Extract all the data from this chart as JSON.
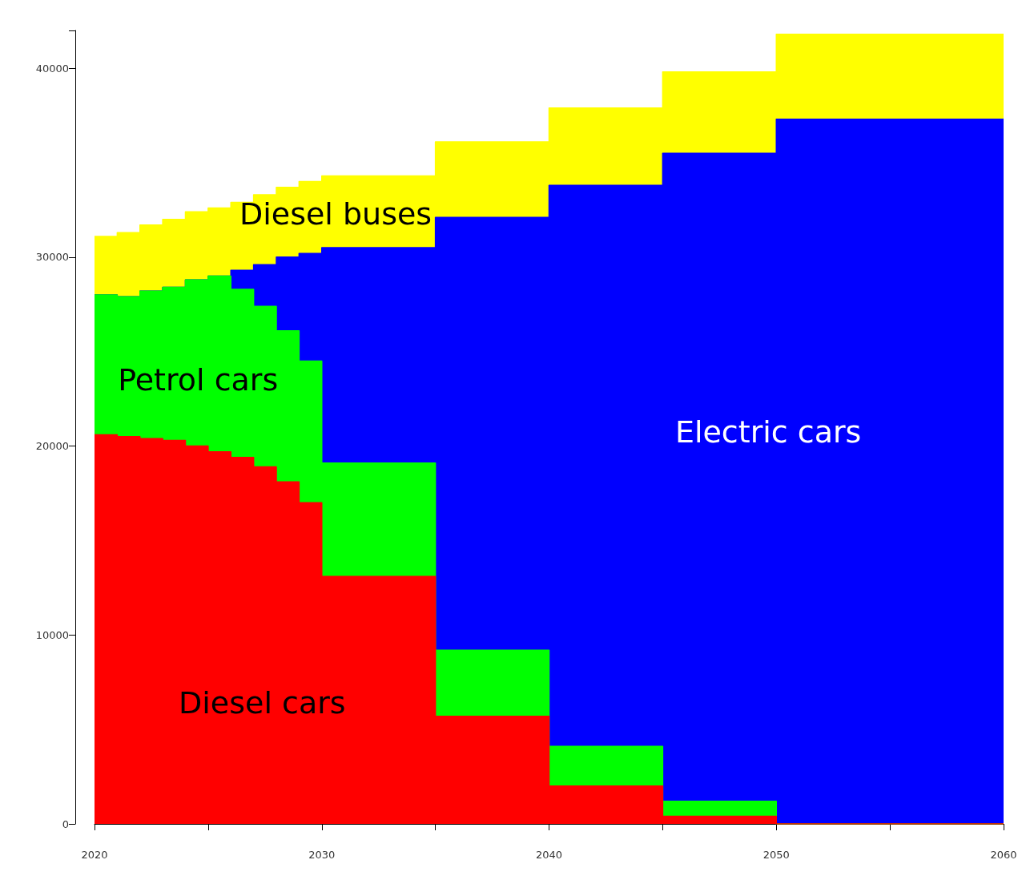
{
  "chart_data": {
    "type": "area",
    "stacked": true,
    "x": [
      2020,
      2021,
      2021,
      2022,
      2022,
      2023,
      2023,
      2024,
      2024,
      2025,
      2025,
      2026,
      2026,
      2027,
      2027,
      2028,
      2028,
      2029,
      2029,
      2030,
      2030,
      2035,
      2035,
      2040,
      2040,
      2045,
      2045,
      2050,
      2050,
      2060
    ],
    "series": [
      {
        "name": "Diesel cars",
        "color": "#ff0000",
        "values": [
          20600,
          20600,
          20500,
          20500,
          20400,
          20400,
          20300,
          20300,
          20000,
          20000,
          19700,
          19700,
          19400,
          19400,
          18900,
          18900,
          18100,
          18100,
          17000,
          17000,
          13100,
          13100,
          5700,
          5700,
          2000,
          2000,
          400,
          400,
          0,
          0
        ]
      },
      {
        "name": "Petrol cars",
        "color": "#00ff00",
        "values": [
          7400,
          7400,
          7400,
          7400,
          7800,
          7800,
          8100,
          8100,
          8800,
          8800,
          9300,
          9300,
          8900,
          8900,
          8500,
          8500,
          8000,
          8000,
          7500,
          7500,
          6000,
          6000,
          3500,
          3500,
          2100,
          2100,
          800,
          800,
          0,
          0
        ]
      },
      {
        "name": "Electric cars",
        "color": "#0000ff",
        "values": [
          0,
          0,
          0,
          0,
          0,
          0,
          0,
          0,
          0,
          0,
          0,
          0,
          1000,
          1000,
          2200,
          2200,
          3900,
          3900,
          5700,
          5700,
          11400,
          11400,
          22900,
          22900,
          29700,
          29700,
          34300,
          34300,
          37300,
          37300
        ]
      },
      {
        "name": "Diesel buses",
        "color": "#ffff00",
        "values": [
          3100,
          3100,
          3400,
          3400,
          3500,
          3500,
          3600,
          3600,
          3600,
          3600,
          3600,
          3600,
          3600,
          3600,
          3700,
          3700,
          3700,
          3700,
          3800,
          3800,
          3800,
          3800,
          4000,
          4000,
          4100,
          4100,
          4300,
          4300,
          4500,
          4500
        ]
      }
    ],
    "xlim": [
      2020,
      2060
    ],
    "xticks": [
      2020,
      {
        "value": 2025,
        "label": null
      },
      2030,
      {
        "value": 2035,
        "label": null
      },
      2040,
      {
        "value": 2045,
        "label": null
      },
      2050,
      {
        "value": 2055,
        "label": null
      },
      2060
    ],
    "ylim": [
      0,
      42000
    ],
    "yticks": [
      0,
      10000,
      20000,
      30000,
      40000
    ],
    "grid": false,
    "legend": false
  }
}
